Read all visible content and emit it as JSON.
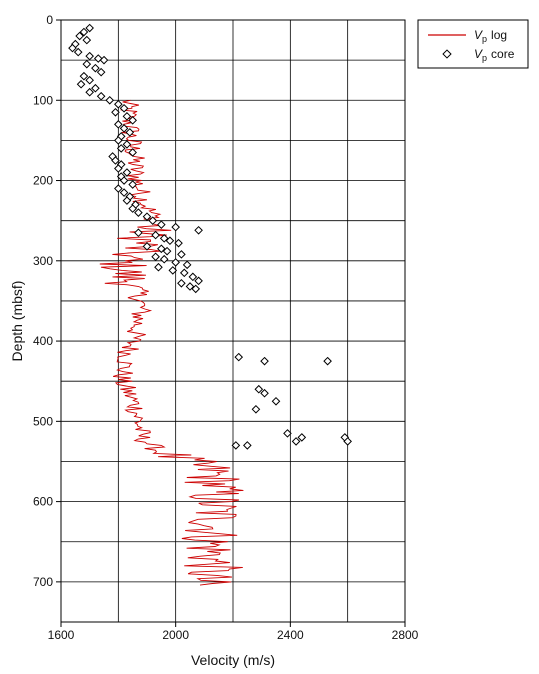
{
  "chart_data": {
    "type": "scatter",
    "title": "",
    "xlabel": "Velocity (m/s)",
    "ylabel": "Depth (mbsf)",
    "xlim": [
      1600,
      2800
    ],
    "ylim": [
      0,
      750
    ],
    "y_inverted": true,
    "x_ticks": [
      "1600",
      "2000",
      "2400",
      "2800"
    ],
    "y_ticks": [
      "0",
      "100",
      "200",
      "300",
      "400",
      "500",
      "600",
      "700"
    ],
    "grid": true,
    "legend_position": "top-right outside",
    "legend": {
      "log": {
        "symbol": "V",
        "subscript": "p",
        "suffix": "log"
      },
      "core": {
        "symbol": "V",
        "subscript": "p",
        "suffix": "core"
      }
    },
    "colors": {
      "log": "#cc0000",
      "core_marker": "#000000",
      "grid": "#000000"
    },
    "series": [
      {
        "name": "Vp log",
        "kind": "line",
        "depth_step": 2,
        "depth_start": 100,
        "profile": [
          [
            100,
            1830
          ],
          [
            130,
            1840
          ],
          [
            160,
            1850
          ],
          [
            190,
            1860
          ],
          [
            220,
            1880
          ],
          [
            250,
            1930
          ],
          [
            260,
            1900
          ],
          [
            280,
            1880
          ],
          [
            300,
            1810
          ],
          [
            320,
            1830
          ],
          [
            340,
            1870
          ],
          [
            360,
            1880
          ],
          [
            390,
            1860
          ],
          [
            420,
            1830
          ],
          [
            450,
            1810
          ],
          [
            480,
            1860
          ],
          [
            500,
            1870
          ],
          [
            520,
            1880
          ],
          [
            540,
            1950
          ],
          [
            560,
            2120
          ],
          [
            580,
            2140
          ],
          [
            600,
            2130
          ],
          [
            620,
            2140
          ],
          [
            650,
            2120
          ],
          [
            680,
            2130
          ],
          [
            700,
            2090
          ],
          [
            705,
            2090
          ]
        ]
      },
      {
        "name": "Vp core",
        "kind": "scatter",
        "points": [
          [
            1700,
            10
          ],
          [
            1680,
            15
          ],
          [
            1665,
            20
          ],
          [
            1690,
            25
          ],
          [
            1650,
            30
          ],
          [
            1640,
            35
          ],
          [
            1660,
            40
          ],
          [
            1700,
            45
          ],
          [
            1730,
            48
          ],
          [
            1750,
            50
          ],
          [
            1690,
            55
          ],
          [
            1720,
            60
          ],
          [
            1740,
            65
          ],
          [
            1680,
            70
          ],
          [
            1700,
            75
          ],
          [
            1670,
            80
          ],
          [
            1720,
            85
          ],
          [
            1700,
            90
          ],
          [
            1740,
            95
          ],
          [
            1770,
            100
          ],
          [
            1800,
            105
          ],
          [
            1820,
            110
          ],
          [
            1790,
            115
          ],
          [
            1830,
            120
          ],
          [
            1850,
            125
          ],
          [
            1800,
            130
          ],
          [
            1820,
            135
          ],
          [
            1840,
            140
          ],
          [
            1810,
            145
          ],
          [
            1800,
            150
          ],
          [
            1830,
            155
          ],
          [
            1810,
            160
          ],
          [
            1850,
            165
          ],
          [
            1780,
            170
          ],
          [
            1790,
            175
          ],
          [
            1810,
            180
          ],
          [
            1800,
            185
          ],
          [
            1830,
            190
          ],
          [
            1810,
            195
          ],
          [
            1820,
            200
          ],
          [
            1850,
            205
          ],
          [
            1800,
            210
          ],
          [
            1820,
            215
          ],
          [
            1840,
            220
          ],
          [
            1830,
            225
          ],
          [
            1860,
            230
          ],
          [
            1850,
            235
          ],
          [
            1870,
            240
          ],
          [
            1900,
            245
          ],
          [
            1920,
            250
          ],
          [
            1950,
            255
          ],
          [
            2000,
            258
          ],
          [
            2080,
            262
          ],
          [
            1870,
            265
          ],
          [
            1930,
            268
          ],
          [
            1960,
            272
          ],
          [
            1980,
            275
          ],
          [
            2010,
            278
          ],
          [
            1900,
            282
          ],
          [
            1950,
            285
          ],
          [
            1970,
            288
          ],
          [
            2020,
            292
          ],
          [
            1930,
            295
          ],
          [
            1960,
            298
          ],
          [
            2000,
            302
          ],
          [
            2040,
            305
          ],
          [
            1940,
            308
          ],
          [
            1990,
            312
          ],
          [
            2030,
            315
          ],
          [
            2060,
            320
          ],
          [
            2080,
            325
          ],
          [
            2020,
            328
          ],
          [
            2050,
            332
          ],
          [
            2070,
            335
          ],
          [
            2220,
            420
          ],
          [
            2310,
            425
          ],
          [
            2530,
            425
          ],
          [
            2290,
            460
          ],
          [
            2310,
            465
          ],
          [
            2350,
            475
          ],
          [
            2280,
            485
          ],
          [
            2390,
            515
          ],
          [
            2420,
            525
          ],
          [
            2440,
            520
          ],
          [
            2590,
            520
          ],
          [
            2600,
            525
          ],
          [
            2210,
            530
          ],
          [
            2250,
            530
          ]
        ]
      }
    ]
  }
}
